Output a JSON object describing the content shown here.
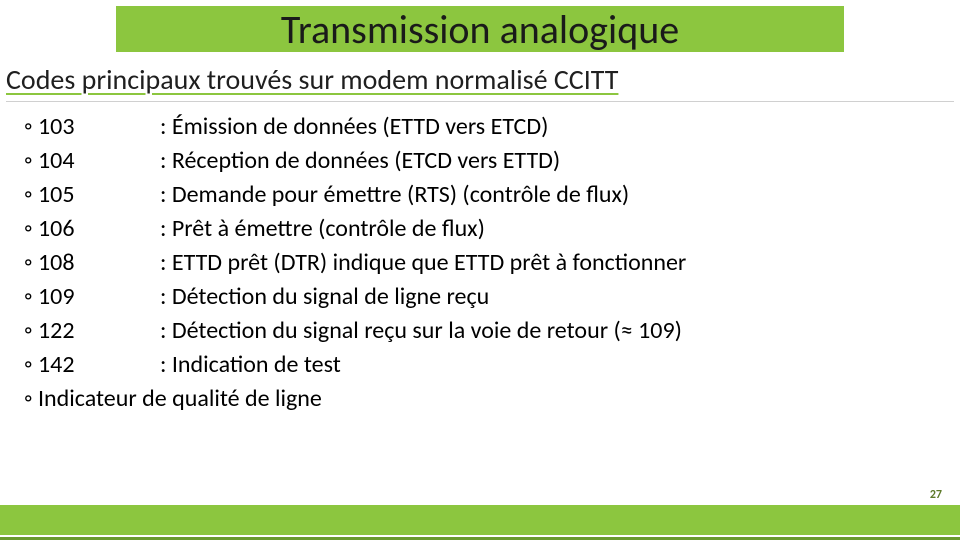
{
  "colors": {
    "accent": "#8cc63f",
    "accent_dark": "#6a9a2f",
    "text": "#1a1a1a",
    "background": "#ffffff",
    "divider": "#d0d0d0"
  },
  "title": "Transmission analogique",
  "subtitle": "Codes principaux trouvés sur modem normalisé CCITT",
  "items": [
    {
      "code": "103",
      "desc": ": Émission de données (ETTD vers ETCD)"
    },
    {
      "code": "104",
      "desc": ": Réception de données (ETCD vers ETTD)"
    },
    {
      "code": "105",
      "desc": ": Demande pour émettre (RTS) (contrôle de flux)"
    },
    {
      "code": "106",
      "desc": ": Prêt à émettre (contrôle de flux)"
    },
    {
      "code": "108",
      "desc": ": ETTD prêt (DTR) indique que ETTD prêt à fonctionner"
    },
    {
      "code": "109",
      "desc": ": Détection du signal de ligne reçu"
    },
    {
      "code": "122",
      "desc": ": Détection du signal reçu sur la voie de retour (≈ 109)"
    },
    {
      "code": "142",
      "desc": ": Indication de test"
    }
  ],
  "last_item": "Indicateur de qualité de ligne",
  "page_number": "27",
  "typography": {
    "title_fontsize": 40,
    "subtitle_fontsize": 28,
    "body_fontsize": 24,
    "pagenum_fontsize": 12
  }
}
